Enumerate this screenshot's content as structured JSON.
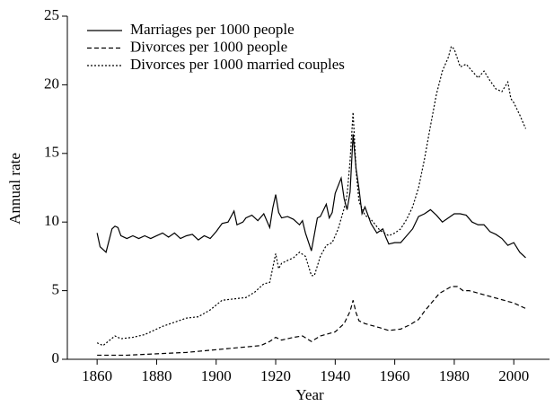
{
  "chart_data": {
    "type": "line",
    "x_label": "Year",
    "y_label": "Annual rate",
    "xlim": [
      1850,
      2012
    ],
    "ylim": [
      0,
      25
    ],
    "xticks": [
      1860,
      1880,
      1900,
      1920,
      1940,
      1960,
      1980,
      2000
    ],
    "yticks": [
      0,
      5,
      10,
      15,
      20,
      25
    ],
    "legend": "upper left",
    "grid": false,
    "series": [
      {
        "name": "Marriages per 1000 people",
        "color": "#000000",
        "dash": "solid",
        "x": [
          1860,
          1861,
          1863,
          1865,
          1866,
          1867,
          1868,
          1870,
          1872,
          1874,
          1876,
          1878,
          1880,
          1882,
          1884,
          1886,
          1888,
          1890,
          1892,
          1894,
          1896,
          1898,
          1900,
          1902,
          1904,
          1906,
          1907,
          1909,
          1910,
          1912,
          1914,
          1916,
          1918,
          1919,
          1920,
          1921,
          1922,
          1924,
          1926,
          1928,
          1929,
          1930,
          1932,
          1934,
          1935,
          1937,
          1938,
          1939,
          1940,
          1942,
          1943,
          1944,
          1945,
          1946,
          1947,
          1948,
          1949,
          1950,
          1952,
          1954,
          1956,
          1957,
          1958,
          1960,
          1962,
          1964,
          1966,
          1968,
          1970,
          1972,
          1974,
          1976,
          1978,
          1980,
          1982,
          1984,
          1986,
          1988,
          1990,
          1992,
          1994,
          1996,
          1998,
          2000,
          2002,
          2004
        ],
        "values": [
          9.2,
          8.2,
          7.8,
          9.5,
          9.7,
          9.6,
          9.0,
          8.8,
          9.0,
          8.8,
          9.0,
          8.8,
          9.0,
          9.2,
          8.9,
          9.2,
          8.8,
          9.0,
          9.1,
          8.7,
          9.0,
          8.8,
          9.3,
          9.9,
          10.0,
          10.8,
          9.8,
          10.0,
          10.3,
          10.5,
          10.1,
          10.6,
          9.6,
          11.0,
          12.0,
          10.7,
          10.3,
          10.4,
          10.2,
          9.8,
          10.1,
          9.2,
          7.9,
          10.3,
          10.4,
          11.3,
          10.3,
          10.7,
          12.1,
          13.2,
          11.7,
          10.9,
          12.2,
          16.4,
          13.9,
          12.4,
          10.6,
          11.1,
          9.9,
          9.2,
          9.5,
          8.9,
          8.4,
          8.5,
          8.5,
          9.0,
          9.5,
          10.4,
          10.6,
          10.9,
          10.5,
          10.0,
          10.3,
          10.6,
          10.6,
          10.5,
          10.0,
          9.8,
          9.8,
          9.3,
          9.1,
          8.8,
          8.3,
          8.5,
          7.8,
          7.4
        ]
      },
      {
        "name": "Divorces per 1000 people",
        "color": "#000000",
        "dash": "dashed",
        "x": [
          1860,
          1870,
          1880,
          1890,
          1900,
          1910,
          1915,
          1918,
          1920,
          1922,
          1926,
          1929,
          1932,
          1935,
          1940,
          1943,
          1945,
          1946,
          1947,
          1948,
          1950,
          1955,
          1958,
          1962,
          1965,
          1968,
          1970,
          1975,
          1979,
          1981,
          1983,
          1985,
          1990,
          1995,
          2000,
          2004
        ],
        "values": [
          0.3,
          0.3,
          0.4,
          0.5,
          0.7,
          0.9,
          1.0,
          1.3,
          1.6,
          1.4,
          1.6,
          1.7,
          1.3,
          1.7,
          2.0,
          2.6,
          3.5,
          4.3,
          3.4,
          2.8,
          2.6,
          2.3,
          2.1,
          2.2,
          2.5,
          2.9,
          3.5,
          4.8,
          5.3,
          5.3,
          5.0,
          5.0,
          4.7,
          4.4,
          4.1,
          3.7
        ]
      },
      {
        "name": "Divorces per 1000 married couples",
        "color": "#000000",
        "dash": "dotted",
        "x": [
          1860,
          1862,
          1866,
          1868,
          1872,
          1876,
          1880,
          1882,
          1886,
          1890,
          1894,
          1898,
          1902,
          1906,
          1910,
          1913,
          1916,
          1918,
          1920,
          1921,
          1922,
          1926,
          1928,
          1930,
          1932,
          1933,
          1935,
          1937,
          1939,
          1941,
          1943,
          1944,
          1945,
          1946,
          1947,
          1948,
          1950,
          1952,
          1955,
          1958,
          1960,
          1962,
          1964,
          1966,
          1968,
          1970,
          1972,
          1974,
          1976,
          1978,
          1979,
          1980,
          1982,
          1984,
          1986,
          1988,
          1990,
          1992,
          1994,
          1996,
          1998,
          1999,
          2000,
          2002,
          2004
        ],
        "values": [
          1.2,
          1.0,
          1.7,
          1.5,
          1.6,
          1.8,
          2.2,
          2.4,
          2.7,
          3.0,
          3.1,
          3.6,
          4.3,
          4.4,
          4.5,
          4.9,
          5.5,
          5.6,
          7.7,
          6.6,
          7.0,
          7.4,
          7.8,
          7.5,
          6.1,
          6.1,
          7.5,
          8.3,
          8.5,
          9.5,
          11.0,
          12.0,
          14.5,
          18.0,
          13.8,
          11.5,
          10.5,
          10.2,
          9.4,
          9.0,
          9.2,
          9.5,
          10.2,
          11.1,
          12.5,
          14.6,
          17.0,
          19.3,
          21.0,
          22.0,
          22.8,
          22.6,
          21.3,
          21.5,
          21.0,
          20.5,
          21.0,
          20.3,
          19.7,
          19.5,
          20.2,
          19.0,
          18.7,
          17.8,
          16.8
        ]
      }
    ]
  }
}
